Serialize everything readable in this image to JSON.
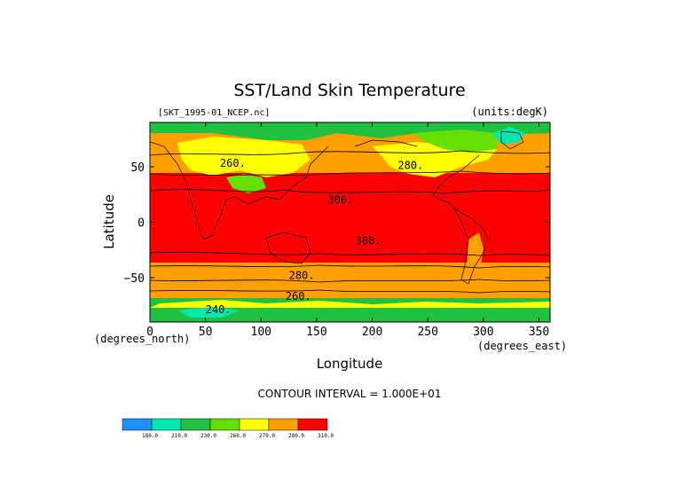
{
  "chart_data": {
    "type": "heatmap",
    "title": "SST/Land Skin Temperature",
    "subtitle_left": "[SKT_1995-01_NCEP.nc]",
    "subtitle_right": "(units:degK)",
    "xlabel": "Longitude",
    "ylabel": "Latitude",
    "x_unit_label": "(degrees_east)",
    "y_unit_label": "(degrees_north)",
    "xlim": [
      0,
      360
    ],
    "ylim": [
      -90,
      90
    ],
    "xticks": [
      0,
      50,
      100,
      150,
      200,
      250,
      300,
      350
    ],
    "yticks": [
      -50,
      0,
      50
    ],
    "contour_interval_text": "CONTOUR INTERVAL = 1.000E+01",
    "contour_labels": [
      {
        "text": "260.",
        "lon": 63,
        "lat": 50
      },
      {
        "text": "280.",
        "lon": 223,
        "lat": 48
      },
      {
        "text": "300.",
        "lon": 160,
        "lat": 17
      },
      {
        "text": "300.",
        "lon": 185,
        "lat": -20
      },
      {
        "text": "280.",
        "lon": 125,
        "lat": -51
      },
      {
        "text": "260.",
        "lon": 122,
        "lat": -70
      },
      {
        "text": "240.",
        "lon": 50,
        "lat": -82
      }
    ],
    "colorbar": {
      "levels": [
        "180.0",
        "210.0",
        "230.0",
        "260.0",
        "270.0",
        "280.0",
        "310.0"
      ],
      "colors": [
        "#1e90ff",
        "#00e8b0",
        "#20c040",
        "#66e000",
        "#ffff00",
        "#ffa000",
        "#ff0000"
      ]
    }
  }
}
